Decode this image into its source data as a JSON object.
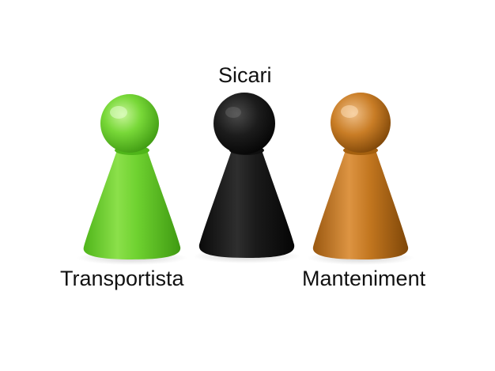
{
  "pieces": [
    {
      "label": "Transportista",
      "color": "#6fd230",
      "shade": "#3f9a12",
      "highlight": "#c8f59a"
    },
    {
      "label": "Sicari",
      "color": "#1a1a1a",
      "shade": "#050505",
      "highlight": "#5a5a5a"
    },
    {
      "label": "Manteniment",
      "color": "#c2761f",
      "shade": "#7e4608",
      "highlight": "#f0c089"
    }
  ]
}
